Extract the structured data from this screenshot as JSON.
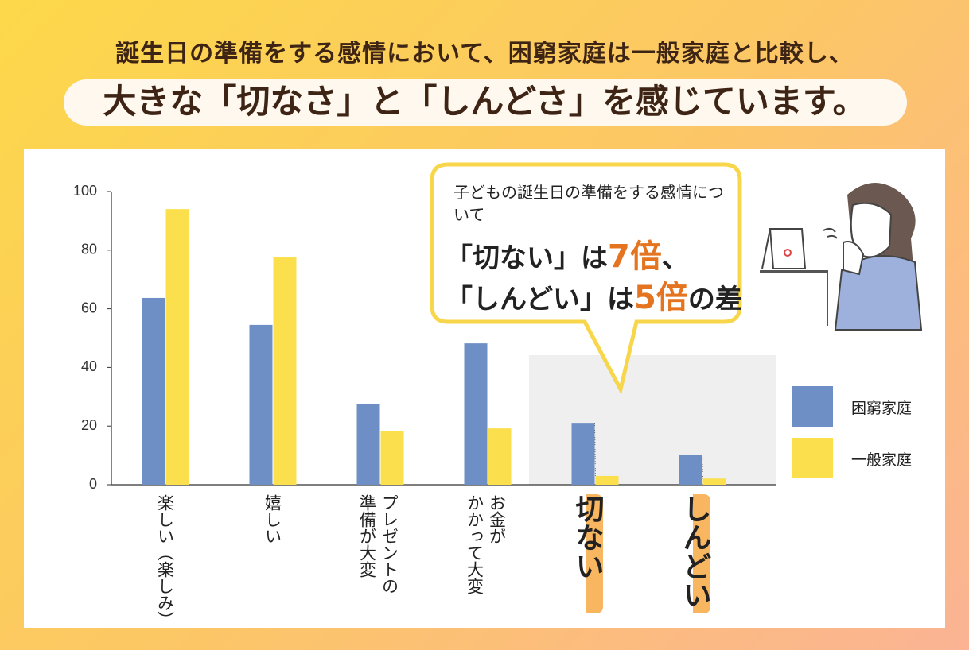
{
  "header": {
    "line1": "誕生日の準備をする感情において、困窮家庭は一般家庭と比較し、",
    "line2": "大きな「切なさ」と「しんどさ」を感じています。"
  },
  "callout": {
    "intro": "子どもの誕生日の準備をする感情について",
    "line1": [
      "「切ない」は",
      "7倍",
      "、"
    ],
    "line2": [
      "「しんどい」は",
      "5倍",
      "の差"
    ]
  },
  "chart_data": {
    "type": "bar",
    "categories": [
      "楽しい（楽しみ）",
      "嬉しい",
      "プレゼントの\n準備が大変",
      "お金が\nかかって大変",
      "切ない",
      "しんどい"
    ],
    "series": [
      {
        "name": "困窮家庭",
        "color": "#6e8fc6",
        "values": [
          63.7,
          54.5,
          27.6,
          48.2,
          21.1,
          10.3
        ]
      },
      {
        "name": "一般家庭",
        "color": "#fbdf4c",
        "values": [
          94.0,
          77.5,
          18.4,
          19.2,
          3.0,
          2.1
        ]
      }
    ],
    "ylim": [
      0,
      100
    ],
    "yticks": [
      0,
      20,
      40,
      60,
      80,
      100
    ]
  }
}
